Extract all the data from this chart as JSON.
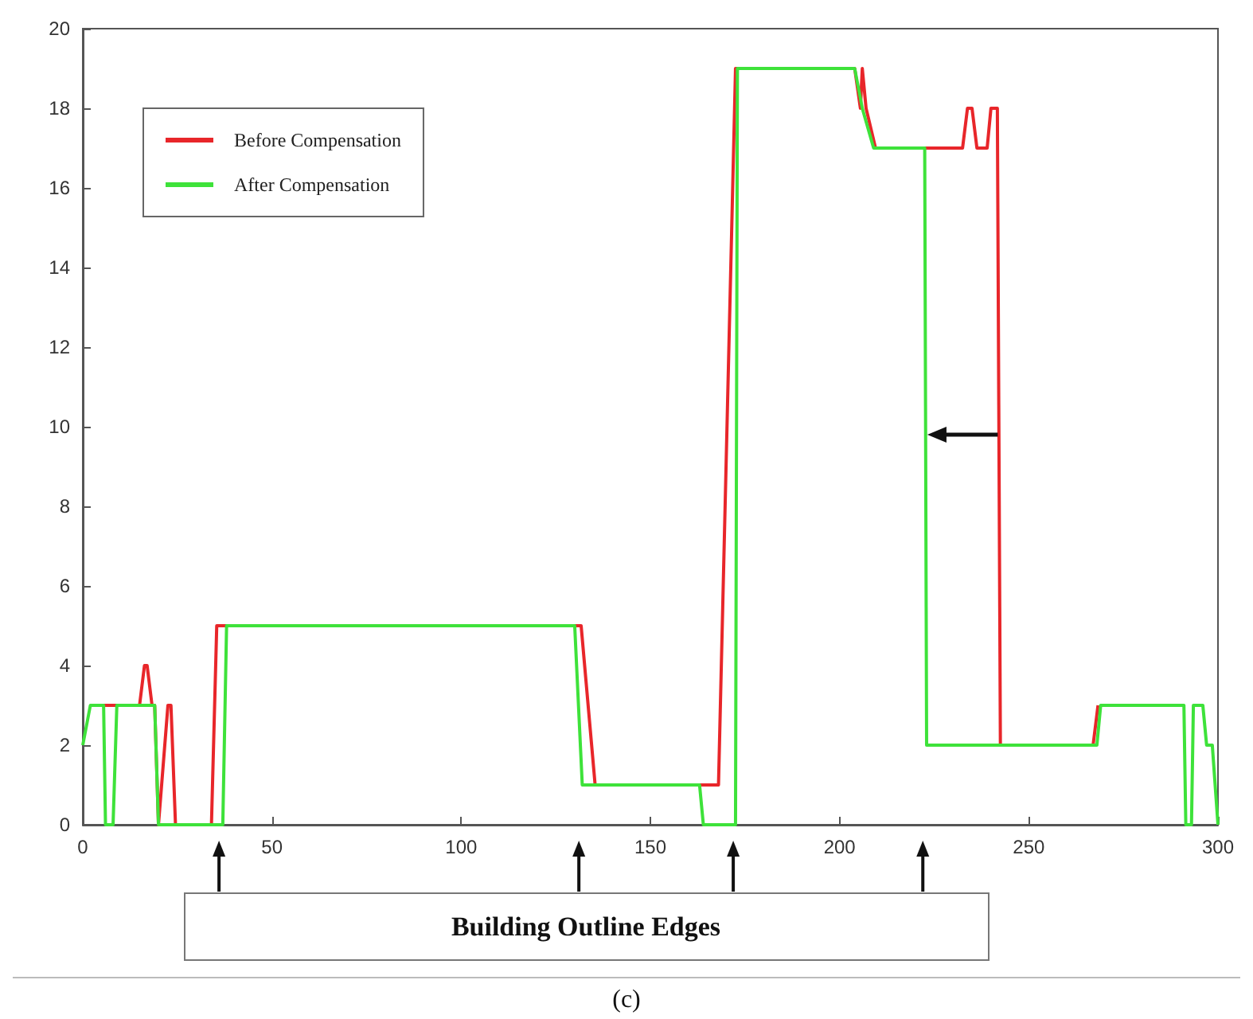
{
  "chart_data": {
    "type": "line",
    "xlim": [
      0,
      300
    ],
    "xticks": [
      0,
      50,
      100,
      150,
      200,
      250,
      300
    ],
    "ylim": [
      0,
      20
    ],
    "yticks": [
      0,
      2,
      4,
      6,
      8,
      10,
      12,
      14,
      16,
      18,
      20
    ],
    "grid": false,
    "legend": "top left",
    "marker": "none",
    "line_style": "solid",
    "series": [
      {
        "name": "Before Compensation",
        "color": "#e8262a",
        "x": [
          5,
          15,
          16.3,
          17,
          18.3,
          19,
          20,
          22.5,
          23.3,
          24.5,
          34,
          35.4,
          131.7,
          135.4,
          168,
          172.5,
          204,
          205.5,
          206,
          207,
          209.5,
          232.5,
          233.8,
          235,
          236.3,
          239,
          240,
          241.7,
          242.5,
          267,
          268.3
        ],
        "values": [
          3,
          3,
          4,
          4,
          3,
          3,
          0,
          3,
          3,
          0,
          0,
          5,
          5,
          1,
          1,
          19,
          19,
          18,
          19,
          18,
          17,
          17,
          18,
          18,
          17,
          17,
          18,
          18,
          2,
          2,
          3
        ]
      },
      {
        "name": "After Compensation",
        "color": "#3ee23a",
        "x": [
          0,
          2,
          5.5,
          6,
          8,
          9,
          19,
          20,
          37,
          38,
          130,
          132,
          163,
          164,
          172.5,
          173,
          204,
          206,
          209,
          222.5,
          223,
          268,
          269,
          291,
          291.5,
          293,
          293.5,
          296,
          297,
          298.5,
          300
        ],
        "values": [
          2,
          3,
          3,
          0,
          0,
          3,
          3,
          0,
          0,
          5,
          5,
          1,
          1,
          0,
          0,
          19,
          19,
          18,
          17,
          17,
          2,
          2,
          3,
          3,
          0,
          0,
          3,
          3,
          2,
          2,
          0
        ]
      }
    ],
    "annotations": [
      "Building Outline Edges",
      "(c)"
    ]
  }
}
